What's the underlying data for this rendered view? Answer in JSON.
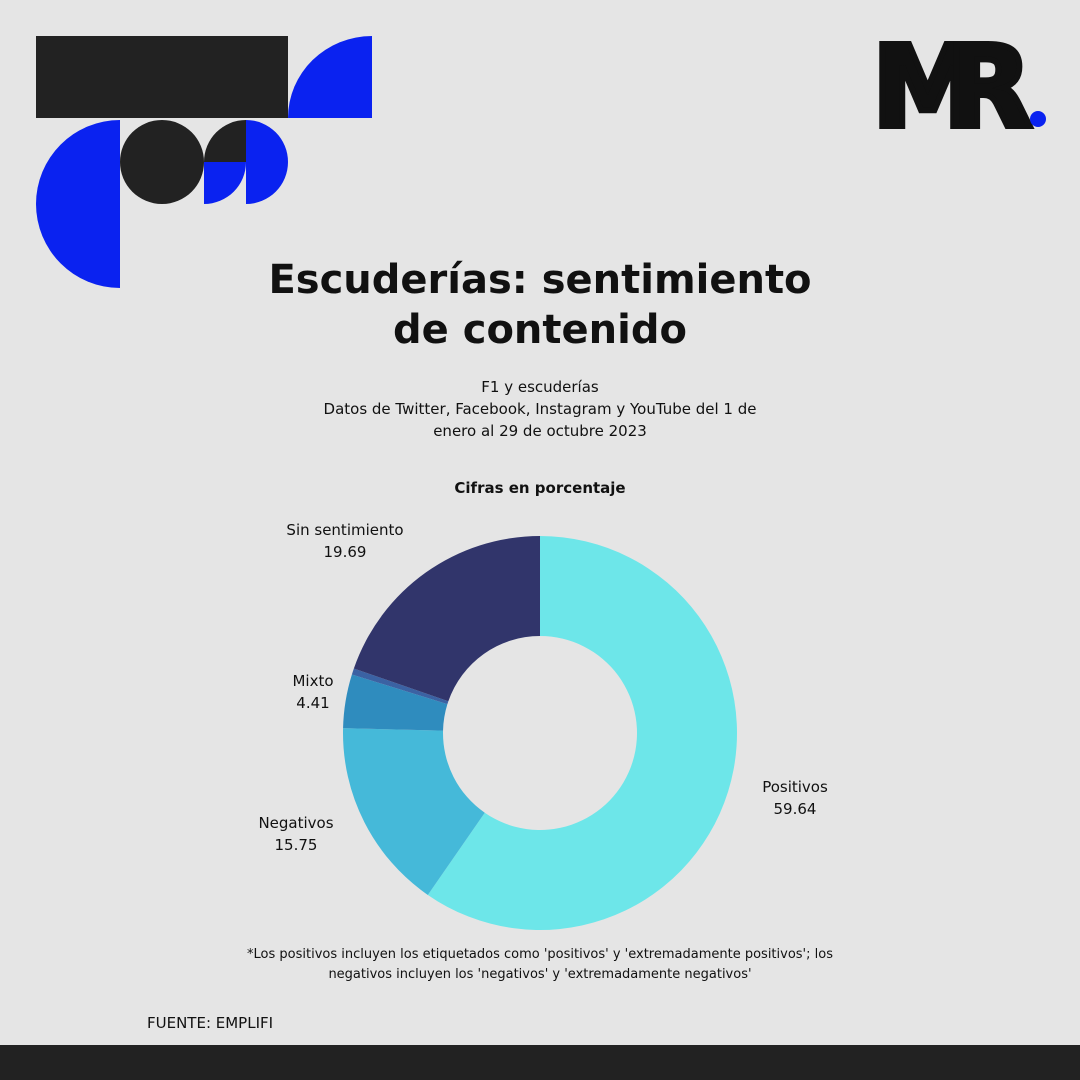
{
  "logo": "MR",
  "chart_data": {
    "type": "donut",
    "title": "Escuderías: sentimiento de contenido",
    "subtitle": [
      "F1 y escuderías",
      "Datos de Twitter, Facebook, Instagram y YouTube del 1 de enero al 29 de octubre 2023"
    ],
    "value_axis_label": "Cifras en porcentaje",
    "categories": [
      "Positivos",
      "Negativos",
      "Mixto",
      null,
      "Sin sentimiento"
    ],
    "values": [
      59.64,
      15.75,
      4.41,
      0.51,
      19.69
    ],
    "colors": [
      "#6de6e9",
      "#45b9d9",
      "#2f8cbe",
      "#3b62a3",
      "#31356b"
    ],
    "note": "*Los positivos incluyen los etiquetados como 'positivos' y 'extremadamente positivos'; los negativos incluyen los 'negativos' y 'extremadamente negativos'",
    "source": "FUENTE: EMPLIFI"
  }
}
